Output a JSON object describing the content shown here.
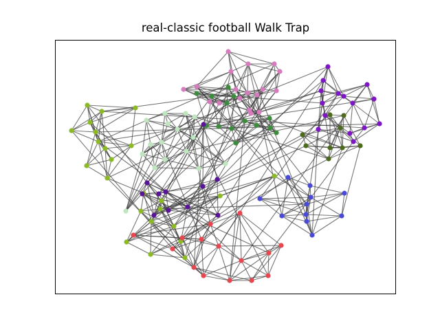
{
  "title": "real-classic football Walk Trap",
  "colors": {
    "edge": "#3a3a3a",
    "frame": "#000000",
    "pink": "#d77bbf",
    "purple": "#7e16c5",
    "dark_green": "#4d6b1c",
    "dark_purple": "#5a1497",
    "blue": "#4a4ad8",
    "red": "#e8474f",
    "yellow_green": "#8bba25",
    "light_green": "#bfe6bf",
    "green": "#3b8d3b"
  },
  "edges_drawn": "approx. 613 (network, lines not individually legible)"
}
